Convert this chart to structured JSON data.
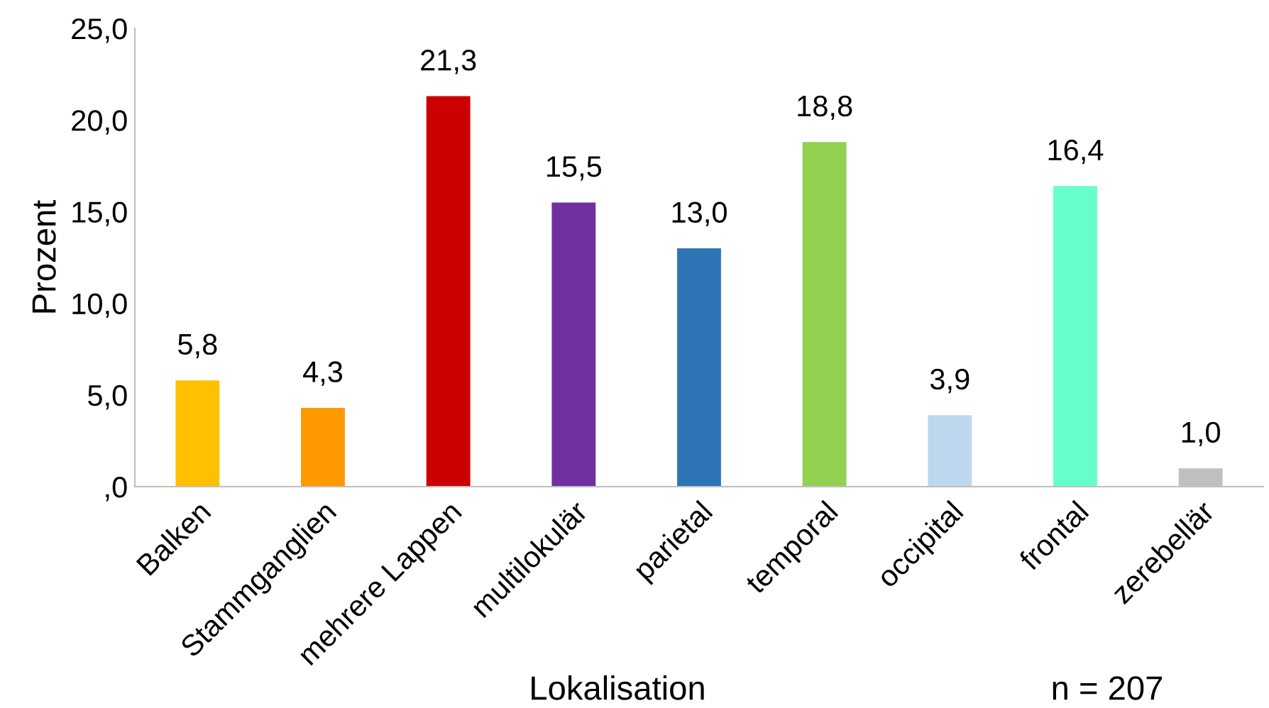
{
  "chart_data": {
    "type": "bar",
    "xlabel": "Lokalisation",
    "ylabel": "Prozent",
    "categories": [
      "Balken",
      "Stammganglien",
      "mehrere Lappen",
      "multilokulär",
      "parietal",
      "temporal",
      "occipital",
      "frontal",
      "zerebellär"
    ],
    "values": [
      5.8,
      4.3,
      21.3,
      15.5,
      13.0,
      18.8,
      3.9,
      16.4,
      1.0
    ],
    "value_labels": [
      "5,8",
      "4,3",
      "21,3",
      "15,5",
      "13,0",
      "18,8",
      "3,9",
      "16,4",
      "1,0"
    ],
    "colors": [
      "#ffc000",
      "#ff9900",
      "#cc0000",
      "#7030a0",
      "#2e75b6",
      "#92d050",
      "#bdd7ee",
      "#66ffcc",
      "#bfbfbf"
    ],
    "ylim": [
      0,
      25
    ],
    "yticks": [
      {
        "value": 0,
        "label": ",0"
      },
      {
        "value": 5,
        "label": "5,0"
      },
      {
        "value": 10,
        "label": "10,0"
      },
      {
        "value": 15,
        "label": "15,0"
      },
      {
        "value": 20,
        "label": "20,0"
      },
      {
        "value": 25,
        "label": "25,0"
      }
    ],
    "grid": false,
    "annotations": [
      "n = 207"
    ]
  }
}
